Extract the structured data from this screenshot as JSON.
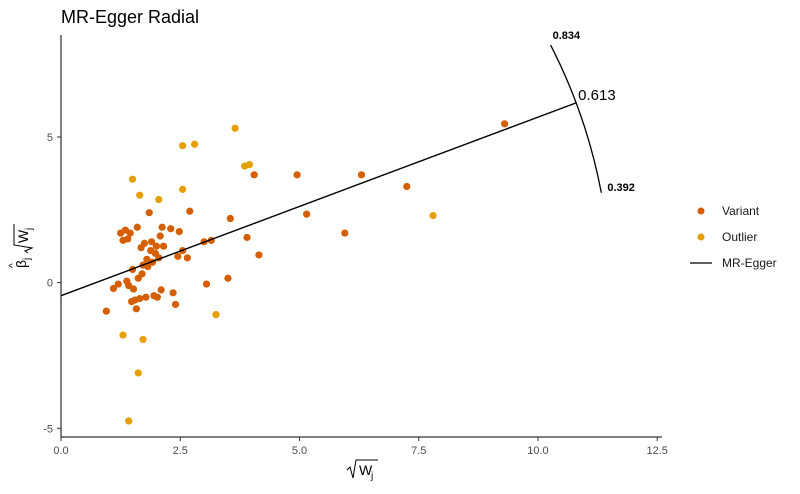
{
  "chart_data": {
    "type": "scatter",
    "title": "MR-Egger Radial",
    "xlabel": "√W_j",
    "ylabel": "β̂_j√W_j",
    "xlim": [
      0,
      12.6
    ],
    "ylim": [
      -5.3,
      8.5
    ],
    "x_ticks": [
      0,
      2.5,
      5,
      7.5,
      10,
      12.5
    ],
    "x_tick_labels": [
      "0.0",
      "2.5",
      "5.0",
      "7.5",
      "10.0",
      "12.5"
    ],
    "y_ticks": [
      -5,
      0,
      5
    ],
    "y_tick_labels": [
      "-5",
      "0",
      "5"
    ],
    "grid": false,
    "legend_position": "right",
    "colors": {
      "variant": "#d55e00",
      "outlier": "#e69f00",
      "line": "#000000"
    },
    "series": [
      {
        "name": "Variant",
        "points": [
          [
            0.95,
            -0.98
          ],
          [
            1.1,
            -0.2
          ],
          [
            1.25,
            1.7
          ],
          [
            1.3,
            1.45
          ],
          [
            1.35,
            1.8
          ],
          [
            1.4,
            1.5
          ],
          [
            1.42,
            -0.1
          ],
          [
            1.45,
            1.7
          ],
          [
            1.5,
            0.45
          ],
          [
            1.52,
            -0.22
          ],
          [
            1.55,
            -0.6
          ],
          [
            1.58,
            -0.9
          ],
          [
            1.6,
            1.9
          ],
          [
            1.62,
            0.15
          ],
          [
            1.65,
            -0.55
          ],
          [
            1.68,
            1.2
          ],
          [
            1.72,
            0.6
          ],
          [
            1.75,
            1.35
          ],
          [
            1.78,
            -0.5
          ],
          [
            1.8,
            0.8
          ],
          [
            1.82,
            0.55
          ],
          [
            1.85,
            2.4
          ],
          [
            1.88,
            1.1
          ],
          [
            1.9,
            1.4
          ],
          [
            1.92,
            0.7
          ],
          [
            1.95,
            -0.45
          ],
          [
            1.98,
            1.0
          ],
          [
            2.0,
            1.25
          ],
          [
            2.02,
            -0.5
          ],
          [
            2.05,
            0.85
          ],
          [
            2.08,
            1.6
          ],
          [
            2.1,
            -0.25
          ],
          [
            2.12,
            1.9
          ],
          [
            2.15,
            1.25
          ],
          [
            2.3,
            1.85
          ],
          [
            2.35,
            -0.35
          ],
          [
            2.4,
            -0.75
          ],
          [
            2.45,
            0.9
          ],
          [
            2.48,
            1.75
          ],
          [
            2.55,
            1.1
          ],
          [
            2.65,
            0.85
          ],
          [
            2.7,
            2.45
          ],
          [
            3.0,
            1.4
          ],
          [
            3.05,
            -0.05
          ],
          [
            3.15,
            1.45
          ],
          [
            3.5,
            0.15
          ],
          [
            3.55,
            2.2
          ],
          [
            3.9,
            1.55
          ],
          [
            4.05,
            3.7
          ],
          [
            4.15,
            0.95
          ],
          [
            4.95,
            3.7
          ],
          [
            5.15,
            2.35
          ],
          [
            5.95,
            1.7
          ],
          [
            6.3,
            3.7
          ],
          [
            7.25,
            3.3
          ],
          [
            9.3,
            5.45
          ],
          [
            1.2,
            -0.05
          ],
          [
            1.38,
            0.05
          ],
          [
            1.48,
            -0.65
          ],
          [
            1.7,
            0.3
          ]
        ]
      },
      {
        "name": "Outlier",
        "points": [
          [
            1.3,
            -1.8
          ],
          [
            1.42,
            -4.75
          ],
          [
            1.5,
            3.55
          ],
          [
            1.62,
            -3.1
          ],
          [
            1.65,
            3.0
          ],
          [
            1.72,
            -1.95
          ],
          [
            2.05,
            2.85
          ],
          [
            2.55,
            4.7
          ],
          [
            2.55,
            3.2
          ],
          [
            2.8,
            4.75
          ],
          [
            3.25,
            -1.1
          ],
          [
            3.65,
            5.3
          ],
          [
            3.85,
            4.0
          ],
          [
            3.95,
            4.05
          ],
          [
            7.8,
            2.3
          ]
        ]
      },
      {
        "name": "MR-Egger",
        "kind": "line",
        "intercept": -0.45,
        "slope": 0.613,
        "x_range": [
          0,
          10.8
        ]
      }
    ],
    "annotations": [
      {
        "text": "0.834",
        "role": "arc-end-upper"
      },
      {
        "text": "0.613",
        "role": "estimate"
      },
      {
        "text": "0.392",
        "role": "arc-end-lower"
      }
    ]
  }
}
